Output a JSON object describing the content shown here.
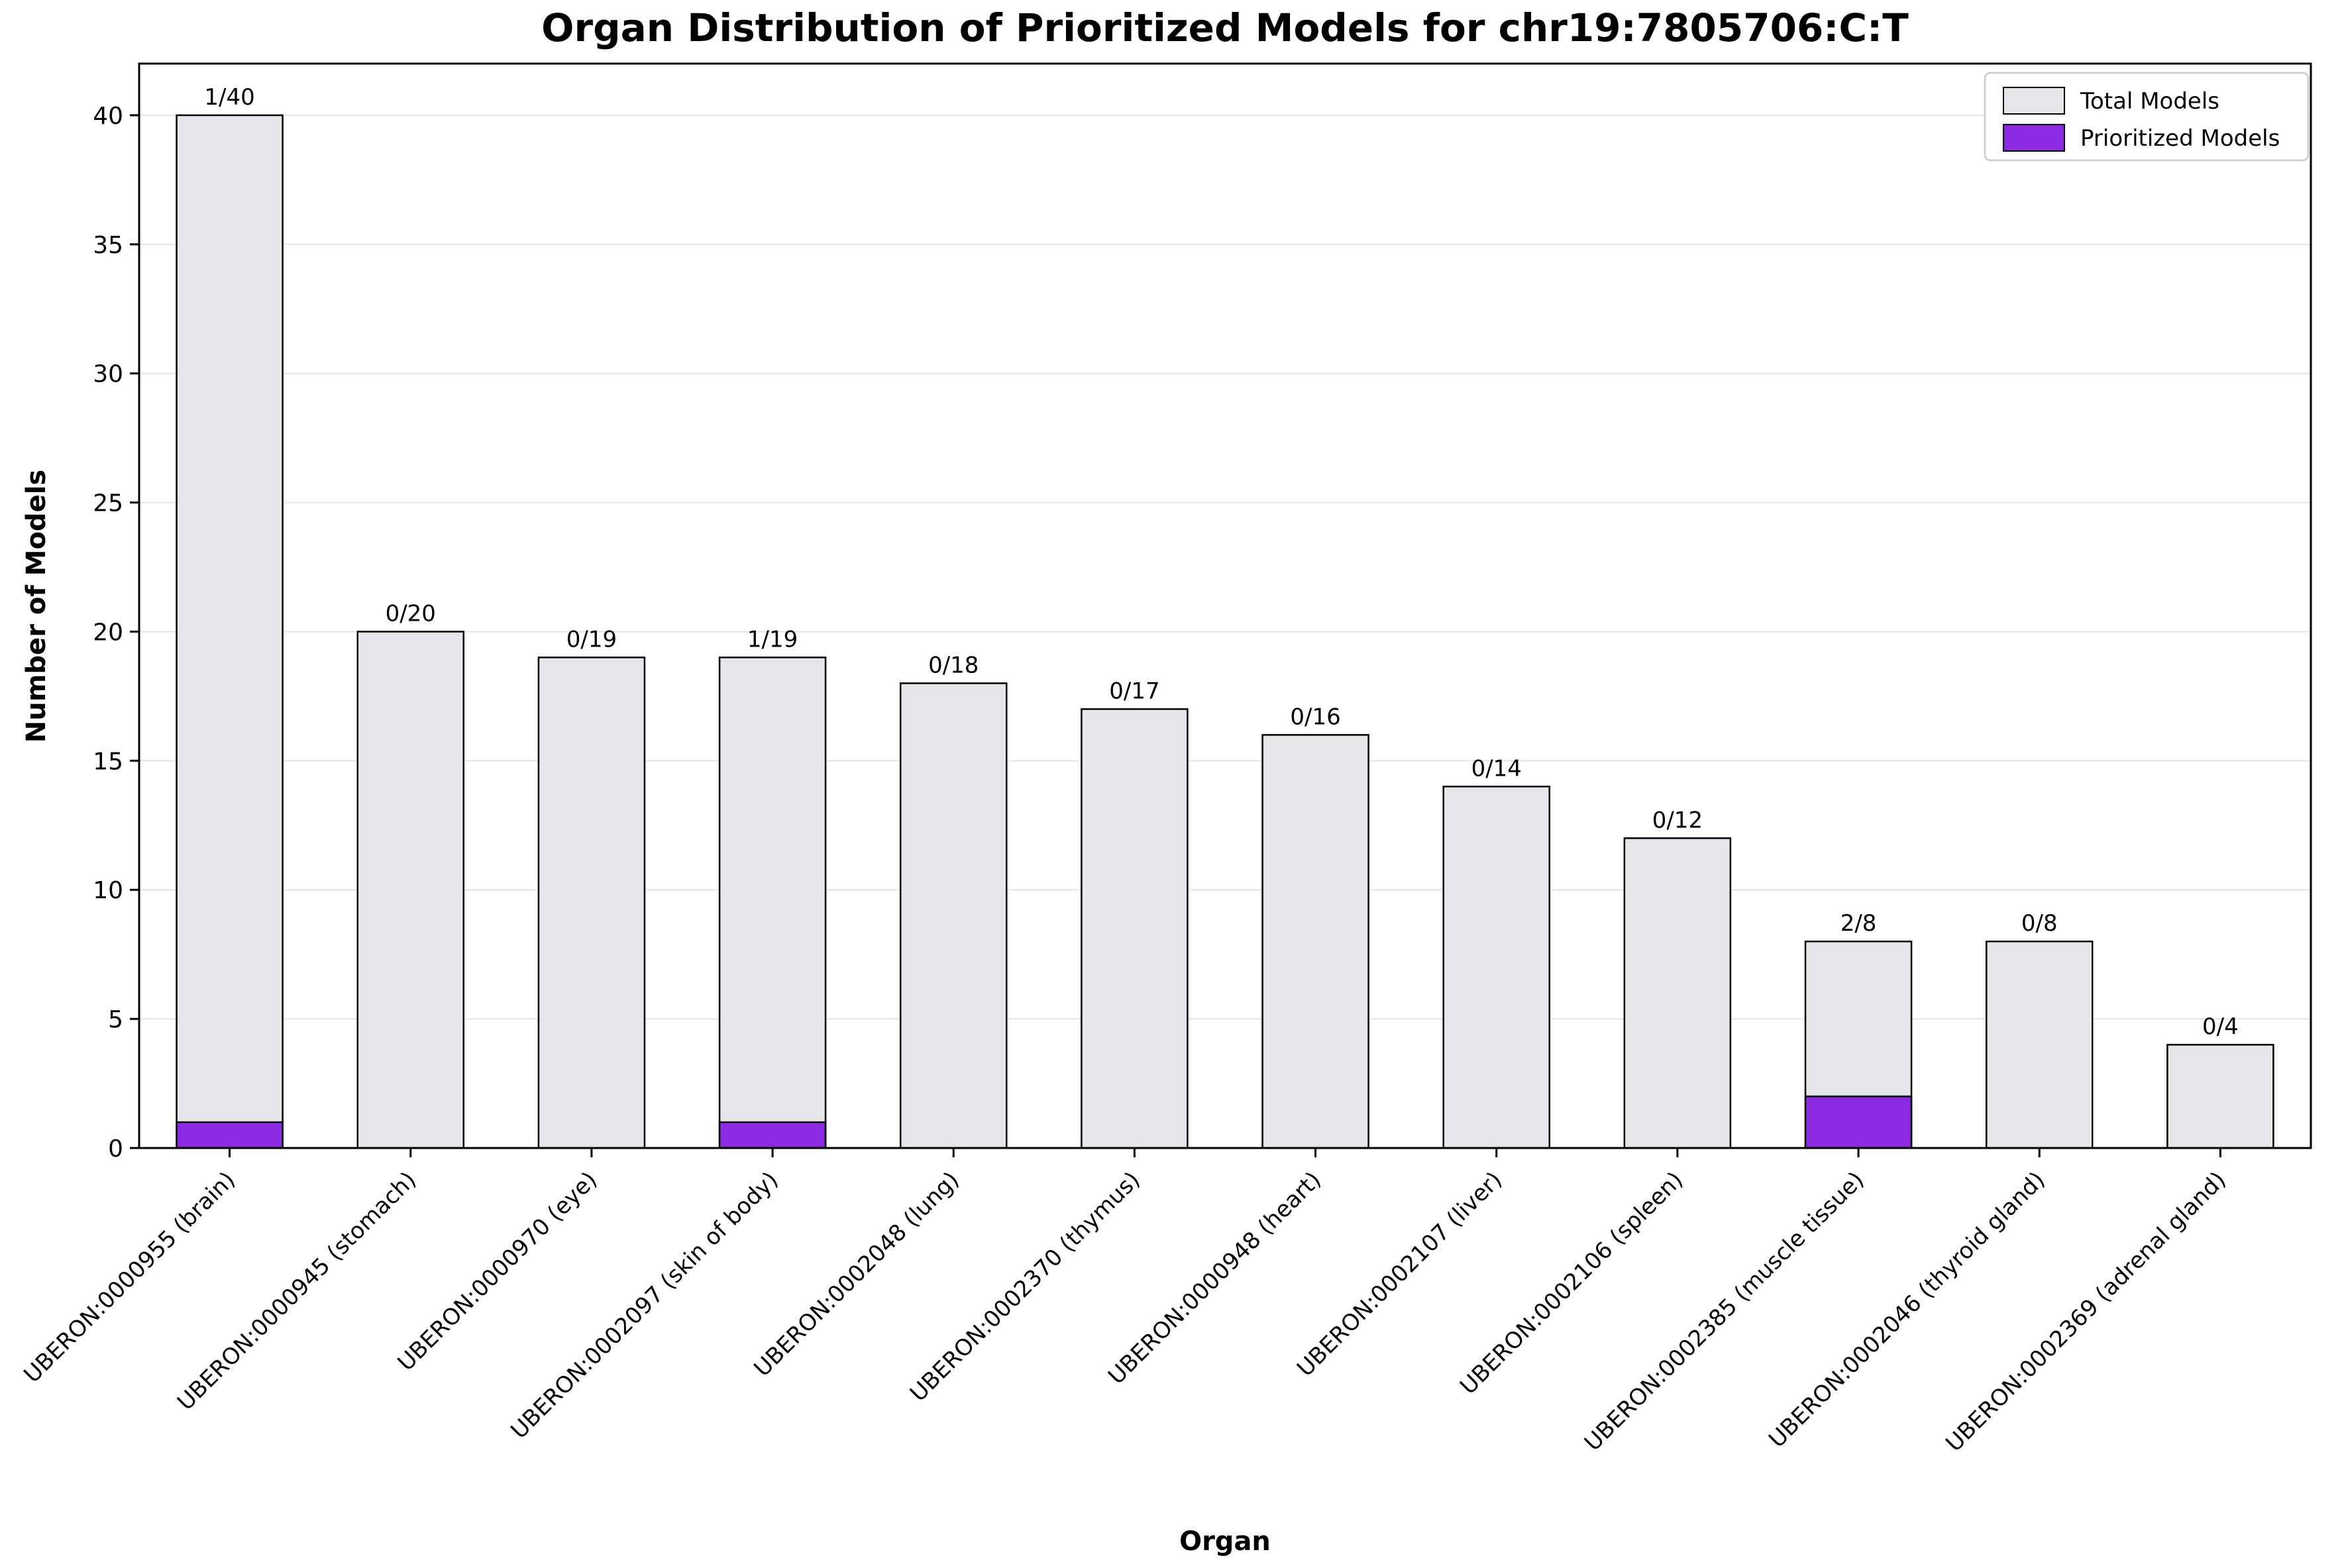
{
  "figure": {
    "background": "#ffffff",
    "plot_background": "#ffffff",
    "spine_color": "#000000",
    "gridline_color": "#e4e4e4"
  },
  "chart_data": {
    "type": "bar",
    "title": "Organ Distribution of Prioritized Models for chr19:7805706:C:T",
    "xlabel": "Organ",
    "ylabel": "Number of Models",
    "ylim": [
      0,
      42
    ],
    "yticks": [
      0,
      5,
      10,
      15,
      20,
      25,
      30,
      35,
      40
    ],
    "grid": "horizontal-light",
    "x_tick_rotation": 45,
    "categories": [
      "UBERON:0000955 (brain)",
      "UBERON:0000945 (stomach)",
      "UBERON:0000970 (eye)",
      "UBERON:0002097 (skin of body)",
      "UBERON:0002048 (lung)",
      "UBERON:0002370 (thymus)",
      "UBERON:0000948 (heart)",
      "UBERON:0002107 (liver)",
      "UBERON:0002106 (spleen)",
      "UBERON:0002385 (muscle tissue)",
      "UBERON:0002046 (thyroid gland)",
      "UBERON:0002369 (adrenal gland)"
    ],
    "series": [
      {
        "name": "Total Models",
        "color": "#e6e6ea",
        "edge_color": "#000000",
        "values": [
          40,
          20,
          19,
          19,
          18,
          17,
          16,
          14,
          12,
          8,
          8,
          4
        ]
      },
      {
        "name": "Prioritized Models",
        "color": "#8a2be2",
        "edge_color": "#000000",
        "values": [
          1,
          0,
          0,
          1,
          0,
          0,
          0,
          0,
          0,
          2,
          0,
          0
        ]
      }
    ],
    "bar_labels": [
      "1/40",
      "0/20",
      "0/19",
      "1/19",
      "0/18",
      "0/17",
      "0/16",
      "0/14",
      "0/12",
      "2/8",
      "0/8",
      "0/4"
    ],
    "legend": {
      "position": "upper-right",
      "items": [
        {
          "label": "Total Models",
          "color": "#e6e6ea"
        },
        {
          "label": "Prioritized Models",
          "color": "#8a2be2"
        }
      ]
    }
  }
}
